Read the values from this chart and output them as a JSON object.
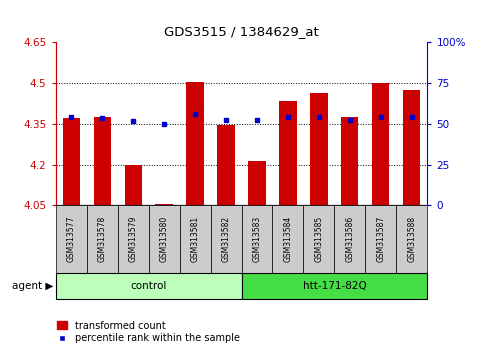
{
  "title": "GDS3515 / 1384629_at",
  "samples": [
    "GSM313577",
    "GSM313578",
    "GSM313579",
    "GSM313580",
    "GSM313581",
    "GSM313582",
    "GSM313583",
    "GSM313584",
    "GSM313585",
    "GSM313586",
    "GSM313587",
    "GSM313588"
  ],
  "red_values": [
    4.37,
    4.375,
    4.2,
    4.055,
    4.505,
    4.345,
    4.215,
    4.435,
    4.465,
    4.375,
    4.5,
    4.475
  ],
  "blue_values_left": [
    4.375,
    4.37,
    4.36,
    4.35,
    4.385,
    4.365,
    4.363,
    4.375,
    4.375,
    4.365,
    4.375,
    4.375
  ],
  "baseline": 4.05,
  "ylim_left": [
    4.05,
    4.65
  ],
  "ylim_right": [
    0,
    100
  ],
  "yticks_left": [
    4.05,
    4.2,
    4.35,
    4.5,
    4.65
  ],
  "yticks_right": [
    0,
    25,
    50,
    75,
    100
  ],
  "ytick_labels_left": [
    "4.05",
    "4.2",
    "4.35",
    "4.5",
    "4.65"
  ],
  "ytick_labels_right": [
    "0",
    "25",
    "50",
    "75",
    "100%"
  ],
  "grid_yticks": [
    4.2,
    4.35,
    4.5
  ],
  "groups": [
    {
      "label": "control",
      "start": 0,
      "end": 5,
      "color": "#bbffbb"
    },
    {
      "label": "htt-171-82Q",
      "start": 6,
      "end": 11,
      "color": "#44dd44"
    }
  ],
  "group_label": "agent",
  "bar_color": "#cc0000",
  "blue_color": "#0000cc",
  "bar_width": 0.55,
  "tick_area_color": "#cccccc",
  "legend_items": [
    "transformed count",
    "percentile rank within the sample"
  ]
}
